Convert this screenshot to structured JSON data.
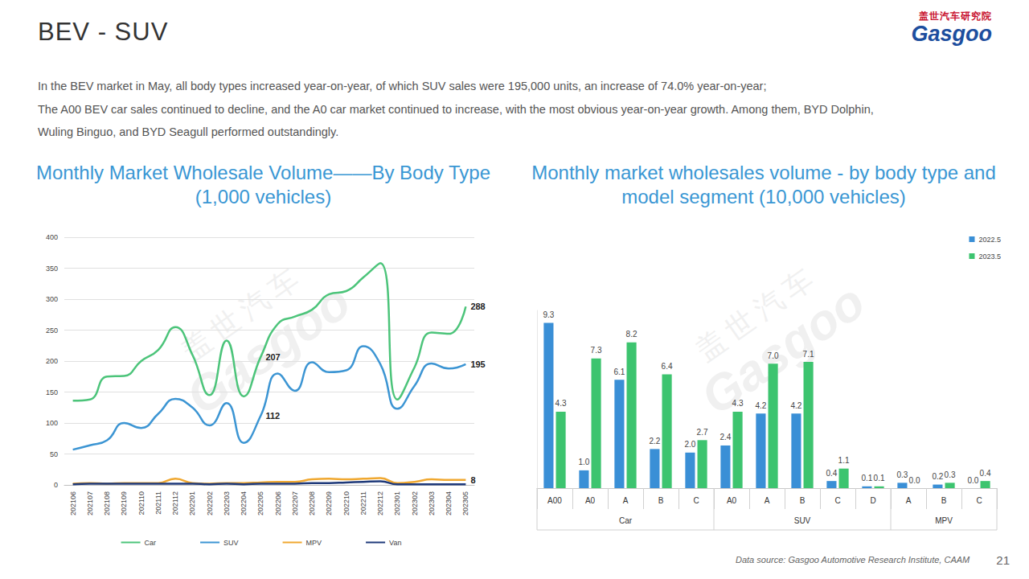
{
  "page": {
    "title": "BEV - SUV",
    "text": [
      "In the BEV market in May, all body types increased year-on-year, of which SUV sales were 195,000 units, an increase of 74.0% year-on-year;",
      "The A00 BEV car sales continued to decline, and the A0 car market continued to increase, with the most obvious year-on-year growth. Among them, BYD Dolphin,",
      "Wuling Binguo, and BYD Seagull performed outstandingly."
    ],
    "logo": {
      "cn": "盖世汽车研究院",
      "en": "Gasgoo"
    },
    "watermark": [
      "盖世汽车",
      "Gasgoo"
    ],
    "source": "Data source: Gasgoo Automotive Research Institute, CAAM",
    "page_number": "21"
  },
  "chart_data": [
    {
      "type": "line",
      "title": "Monthly Market Wholesale Volume——By Body Type (1,000 vehicles)",
      "categories": [
        "202106",
        "202107",
        "202108",
        "202109",
        "202110",
        "202111",
        "202112",
        "202201",
        "202202",
        "202203",
        "202204",
        "202205",
        "202206",
        "202207",
        "202208",
        "202209",
        "202210",
        "202211",
        "202212",
        "202301",
        "202302",
        "202303",
        "202304",
        "202305"
      ],
      "ylim": [
        0,
        400
      ],
      "yticks": [
        0,
        50,
        100,
        150,
        200,
        250,
        300,
        350,
        400
      ],
      "grid": true,
      "legend": "bottom",
      "data_labels": true,
      "series": [
        {
          "name": "Car",
          "color": "#4cc47a",
          "values": [
            136,
            138,
            175,
            176,
            200,
            218,
            255,
            210,
            145,
            233,
            143,
            207,
            260,
            272,
            283,
            308,
            313,
            335,
            358,
            138,
            190,
            246,
            244,
            288
          ],
          "value_labels": [
            null,
            null,
            null,
            null,
            null,
            null,
            null,
            null,
            null,
            null,
            null,
            "207",
            null,
            null,
            null,
            null,
            null,
            null,
            null,
            null,
            null,
            null,
            null,
            "288"
          ]
        },
        {
          "name": "SUV",
          "color": "#3c95d3",
          "values": [
            57,
            64,
            72,
            100,
            92,
            115,
            139,
            125,
            96,
            132,
            68,
            112,
            180,
            152,
            198,
            182,
            185,
            224,
            195,
            123,
            160,
            196,
            188,
            195
          ],
          "value_labels": [
            null,
            null,
            null,
            null,
            null,
            null,
            null,
            null,
            null,
            null,
            null,
            "112",
            null,
            null,
            null,
            null,
            null,
            null,
            null,
            null,
            null,
            null,
            null,
            "195"
          ]
        },
        {
          "name": "MPV",
          "color": "#f0a830",
          "values": [
            2,
            3,
            2,
            3,
            3,
            3,
            10,
            3,
            2,
            3,
            3,
            4,
            5,
            5,
            9,
            10,
            9,
            10,
            11,
            3,
            5,
            9,
            8,
            8
          ],
          "value_labels": [
            null,
            null,
            null,
            null,
            null,
            null,
            null,
            null,
            null,
            null,
            null,
            null,
            null,
            null,
            null,
            null,
            null,
            null,
            null,
            null,
            null,
            null,
            null,
            "8"
          ]
        },
        {
          "name": "Van",
          "color": "#1f3a7a",
          "values": [
            1,
            2,
            2,
            2,
            2,
            2,
            2,
            2,
            1,
            2,
            1,
            2,
            2,
            2,
            3,
            3,
            4,
            5,
            6,
            1,
            1,
            1,
            1,
            1
          ]
        }
      ]
    },
    {
      "type": "bar",
      "title": "Monthly market wholesales volume - by body type and model segment (10,000 vehicles)",
      "categories": [
        "A00",
        "A0",
        "A",
        "B",
        "C",
        "A0",
        "A",
        "B",
        "C",
        "D",
        "A",
        "B",
        "C"
      ],
      "groups": [
        {
          "name": "Car",
          "count": 5
        },
        {
          "name": "SUV",
          "count": 5
        },
        {
          "name": "MPV",
          "count": 3
        }
      ],
      "ylim": [
        0,
        10
      ],
      "grid": false,
      "tick_labels": "x",
      "legend": "top-right",
      "data_labels": true,
      "series": [
        {
          "name": "2022.5",
          "color": "#3a8fd6",
          "values": [
            9.3,
            1.0,
            6.1,
            2.2,
            2.0,
            2.4,
            4.2,
            4.2,
            0.4,
            0.1,
            0.3,
            0.2,
            0.0
          ],
          "value_labels": [
            "9.3",
            "1.0",
            "6.1",
            "2.2",
            "2.0",
            "2.4",
            "4.2",
            "4.2",
            "0.4",
            "0.1",
            "0.3",
            "0.2",
            "0.0"
          ]
        },
        {
          "name": "2023.5",
          "color": "#3dc46f",
          "values": [
            4.3,
            7.3,
            8.2,
            6.4,
            2.7,
            4.3,
            7.0,
            7.1,
            1.1,
            0.1,
            0.0,
            0.3,
            0.4
          ],
          "value_labels": [
            "4.3",
            "7.3",
            "8.2",
            "6.4",
            "2.7",
            "4.3",
            "7.0",
            "7.1",
            "1.1",
            "0.1",
            "0.0",
            "0.3",
            "0.4"
          ]
        }
      ]
    }
  ]
}
